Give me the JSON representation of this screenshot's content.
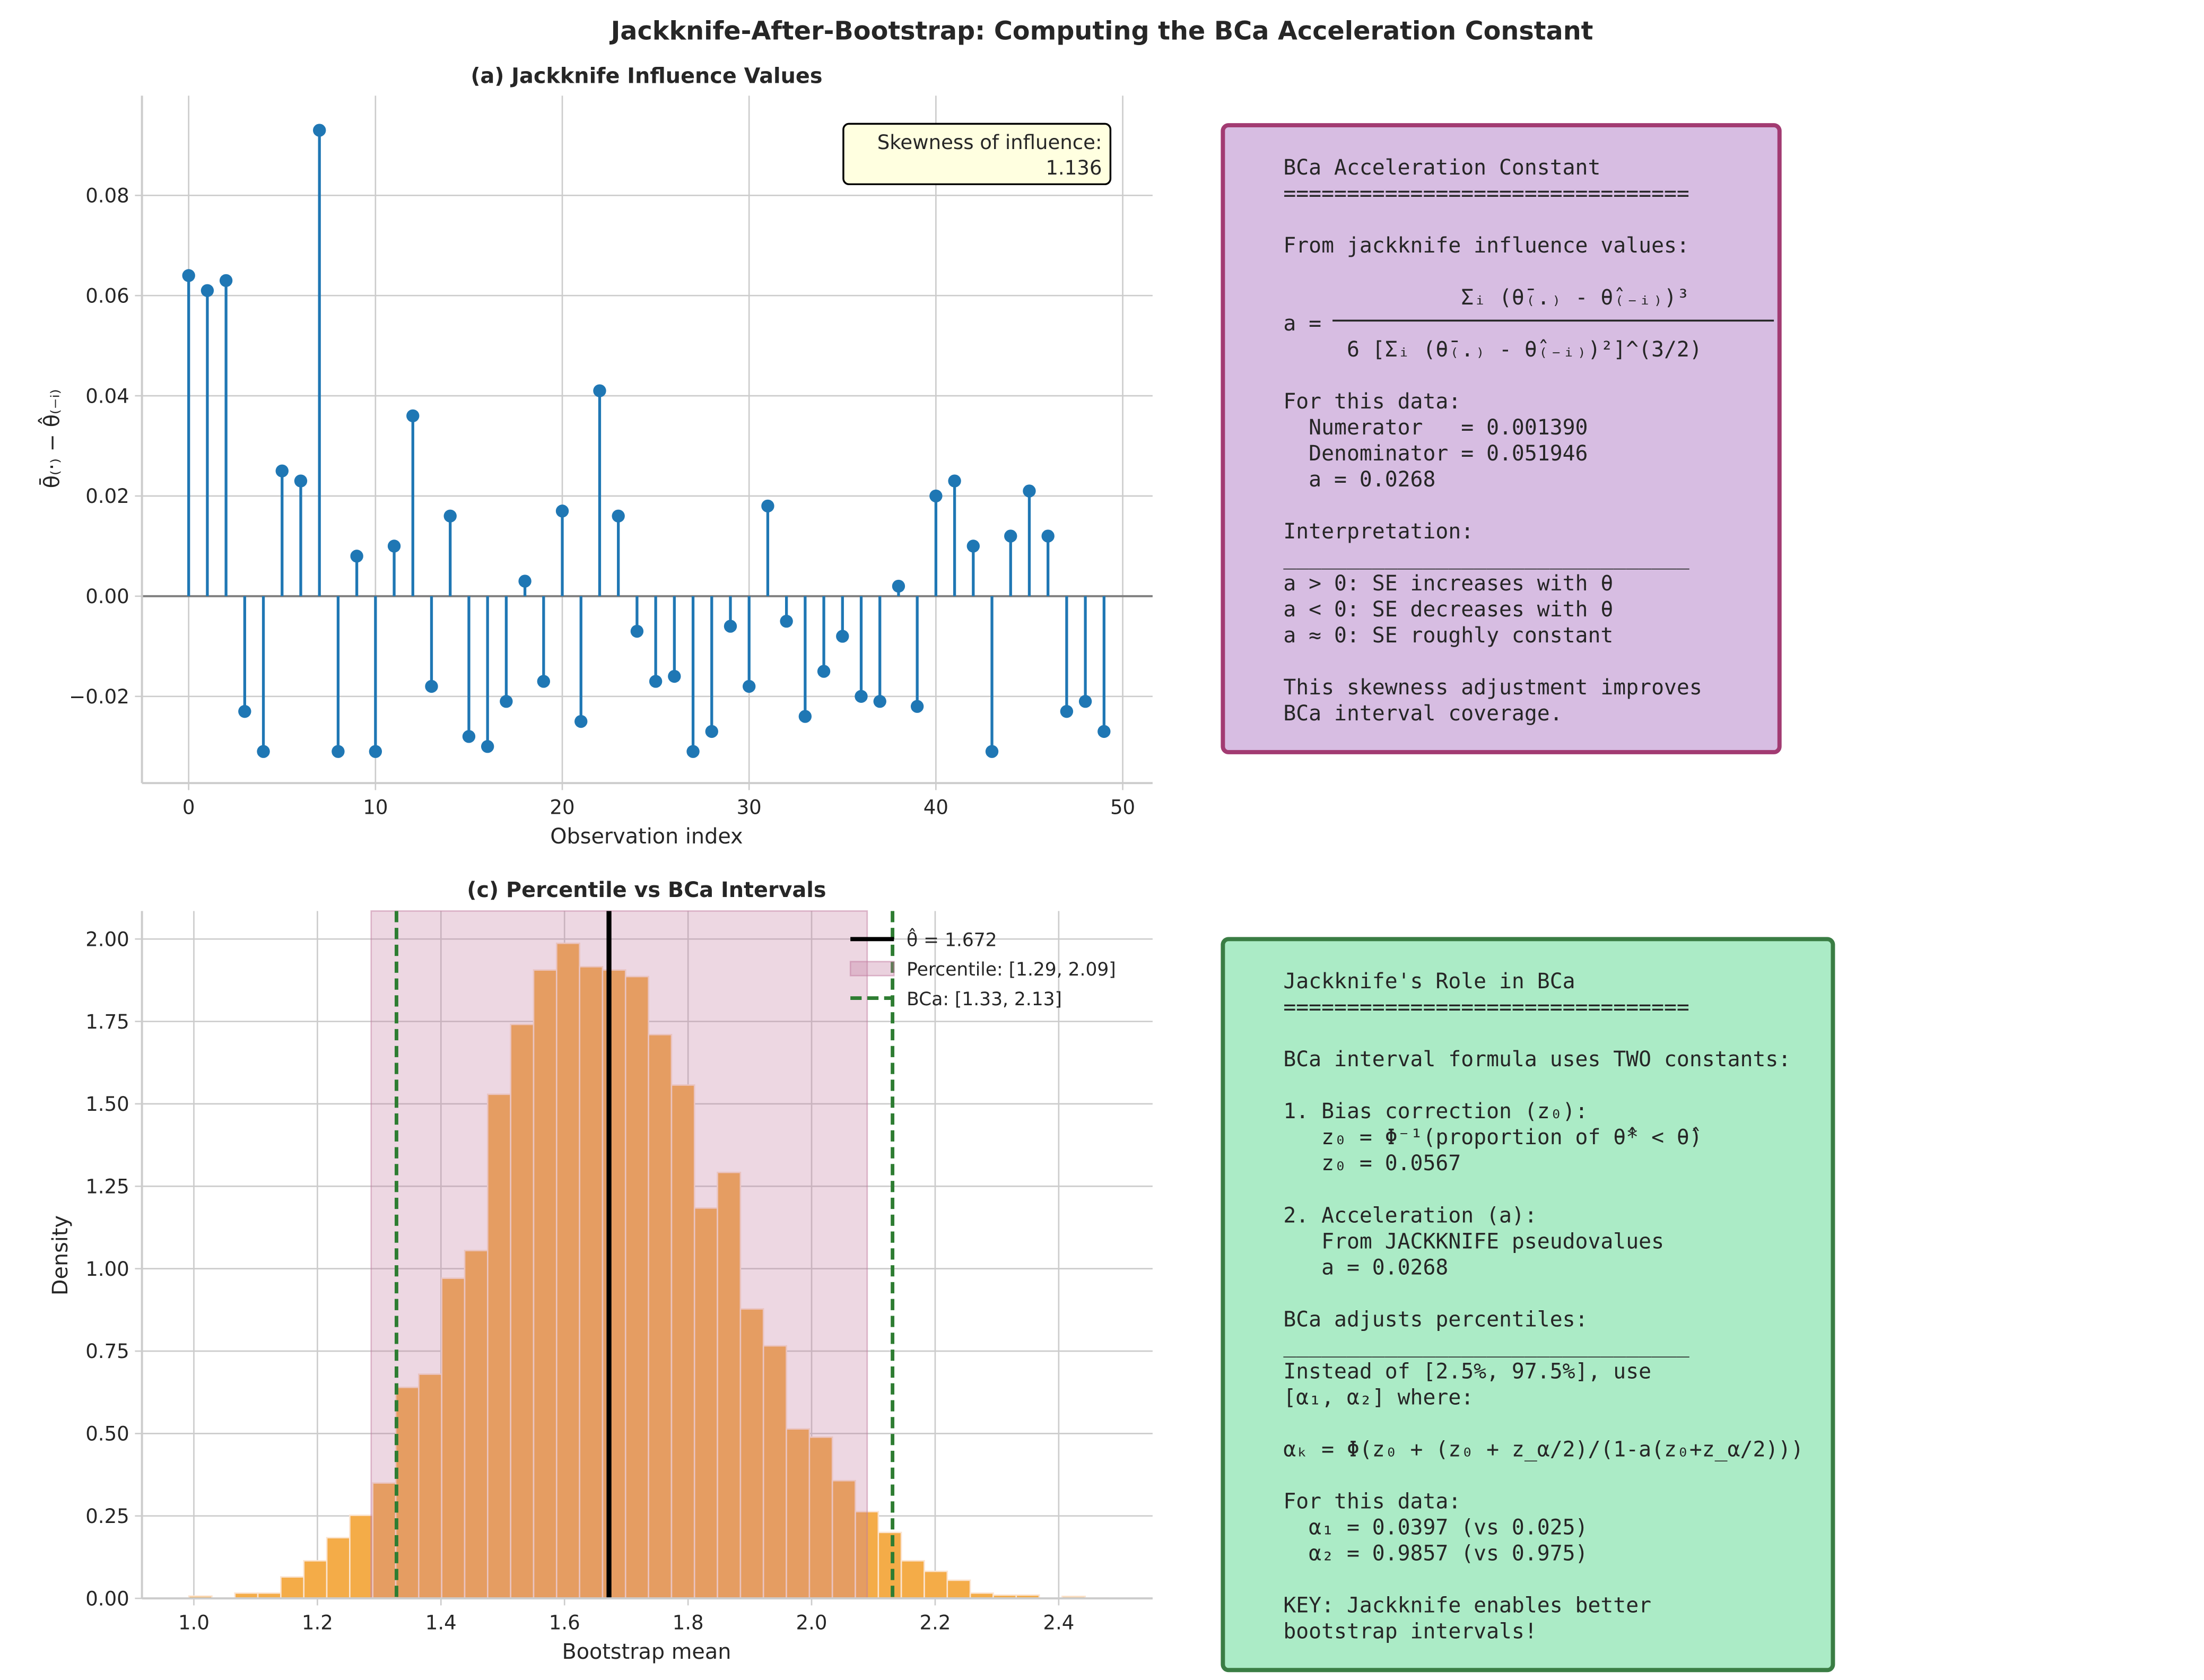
{
  "figure_title": "Jackknife-After-Bootstrap: Computing the BCa Acceleration Constant",
  "chart_data": [
    {
      "type": "stem",
      "title": "(a) Jackknife Influence Values",
      "xlabel": "Observation index",
      "ylabel": "θ̄₍·₎ − θ̂₍₋ᵢ₎",
      "xlim": [
        -2.5,
        51.6
      ],
      "ylim": [
        -0.0373,
        0.0999
      ],
      "xticks": [
        0,
        10,
        20,
        30,
        40,
        50
      ],
      "xtick_labels": [
        "0",
        "10",
        "20",
        "30",
        "40",
        "50"
      ],
      "yticks": [
        -0.02,
        0.0,
        0.02,
        0.04,
        0.06,
        0.08
      ],
      "ytick_labels": [
        "−0.02",
        "0.00",
        "0.02",
        "0.04",
        "0.06",
        "0.08"
      ],
      "grid": true,
      "color": "#1f77b4",
      "baseline_color": "#808080",
      "x": [
        0,
        1,
        2,
        3,
        4,
        5,
        6,
        7,
        8,
        9,
        10,
        11,
        12,
        13,
        14,
        15,
        16,
        17,
        18,
        19,
        20,
        21,
        22,
        23,
        24,
        25,
        26,
        27,
        28,
        29,
        30,
        31,
        32,
        33,
        34,
        35,
        36,
        37,
        38,
        39,
        40,
        41,
        42,
        43,
        44,
        45,
        46,
        47,
        48,
        49
      ],
      "values": [
        0.064,
        0.061,
        0.063,
        -0.023,
        -0.031,
        0.025,
        0.023,
        0.093,
        -0.031,
        0.008,
        -0.031,
        0.01,
        0.036,
        -0.018,
        0.016,
        -0.028,
        -0.03,
        -0.021,
        0.003,
        -0.017,
        0.017,
        -0.025,
        0.041,
        0.016,
        -0.007,
        -0.017,
        -0.016,
        -0.031,
        -0.027,
        -0.006,
        -0.018,
        0.018,
        -0.005,
        -0.024,
        -0.015,
        -0.008,
        -0.02,
        -0.021,
        0.002,
        -0.022,
        0.02,
        0.023,
        0.01,
        -0.031,
        0.012,
        0.021,
        0.012,
        -0.023,
        -0.021,
        -0.027
      ],
      "annotation": {
        "line1": "Skewness of influence:",
        "line2": "1.136",
        "fill": "#ffffe0"
      }
    },
    {
      "type": "histogram",
      "title": "(c) Percentile vs BCa Intervals",
      "xlabel": "Bootstrap mean",
      "ylabel": "Density",
      "xlim": [
        0.916,
        2.552
      ],
      "ylim": [
        0,
        2.085
      ],
      "xticks": [
        1.0,
        1.2,
        1.4,
        1.6,
        1.8,
        2.0,
        2.2,
        2.4
      ],
      "xtick_labels": [
        "1.0",
        "1.2",
        "1.4",
        "1.6",
        "1.8",
        "2.0",
        "2.2",
        "2.4"
      ],
      "yticks": [
        0,
        0.25,
        0.5,
        0.75,
        1.0,
        1.25,
        1.5,
        1.75,
        2.0
      ],
      "ytick_labels": [
        "0.00",
        "0.25",
        "0.50",
        "0.75",
        "1.00",
        "1.25",
        "1.50",
        "1.75",
        "2.00"
      ],
      "grid": true,
      "bar_color": "#f4ac48",
      "bin_start": 0.992,
      "bin_width": 0.0372,
      "values": [
        0.007,
        0.001,
        0.016,
        0.016,
        0.065,
        0.114,
        0.184,
        0.252,
        0.35,
        0.64,
        0.68,
        0.971,
        1.055,
        1.529,
        1.741,
        1.906,
        1.987,
        1.916,
        1.906,
        1.886,
        1.71,
        1.557,
        1.184,
        1.292,
        0.878,
        0.766,
        0.514,
        0.489,
        0.357,
        0.263,
        0.2,
        0.114,
        0.082,
        0.055,
        0.016,
        0.01,
        0.01,
        0.0,
        0.006,
        0.001
      ],
      "theta_hat": 1.672,
      "percentile_interval": [
        1.287,
        2.09
      ],
      "bca_interval": [
        1.328,
        2.131
      ],
      "span_color": "#c27ba0",
      "bca_color": "#2e7d32",
      "legend_position": "top-right",
      "legend": [
        "θ̂ = 1.672",
        "Percentile: [1.29, 2.09]",
        "BCa: [1.33, 2.13]"
      ]
    }
  ],
  "panel_b": {
    "fill": "#d7bde2",
    "border": "#a23b72",
    "lines": [
      "BCa Acceleration Constant",
      "================================",
      "",
      "From jackknife influence values:",
      "",
      "              Σᵢ (θ̄₍.₎ - θ̂₍₋ᵢ₎)³",
      "a = ",
      "     6 [Σᵢ (θ̄₍.₎ - θ̂₍₋ᵢ₎)²]^(3/2)",
      "",
      "For this data:",
      "  Numerator   = 0.001390",
      "  Denominator = 0.051946",
      "  a = 0.0268",
      "",
      "Interpretation:",
      "________________________________",
      "a > 0: SE increases with θ",
      "a < 0: SE decreases with θ",
      "a ≈ 0: SE roughly constant",
      "",
      "This skewness adjustment improves",
      "BCa interval coverage."
    ]
  },
  "panel_d": {
    "fill": "#abebc6",
    "border": "#3a7d44",
    "lines": [
      "Jackknife's Role in BCa",
      "================================",
      "",
      "BCa interval formula uses TWO constants:",
      "",
      "1. Bias correction (z₀):",
      "   z₀ = Φ⁻¹(proportion of θ̂* < θ̂)",
      "   z₀ = 0.0567",
      "",
      "2. Acceleration (a):",
      "   From JACKKNIFE pseudovalues",
      "   a = 0.0268",
      "",
      "BCa adjusts percentiles:",
      "________________________________",
      "Instead of [2.5%, 97.5%], use",
      "[α₁, α₂] where:",
      "",
      "αₖ = Φ(z₀ + (z₀ + z_α/2)/(1-a(z₀+z_α/2)))",
      "",
      "For this data:",
      "  α₁ = 0.0397 (vs 0.025)",
      "  α₂ = 0.9857 (vs 0.975)",
      "",
      "KEY: Jackknife enables better",
      "bootstrap intervals!"
    ]
  }
}
